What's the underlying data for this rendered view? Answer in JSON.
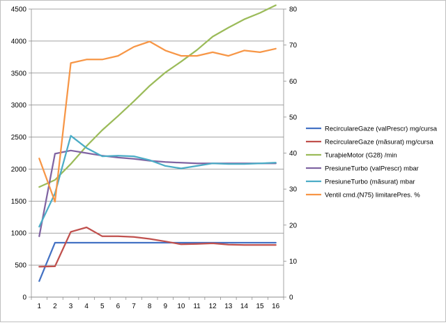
{
  "chart_data": {
    "type": "line",
    "title": "",
    "xlabel": "",
    "ylabel": "",
    "categories": [
      "1",
      "2",
      "3",
      "4",
      "5",
      "6",
      "7",
      "8",
      "9",
      "10",
      "11",
      "12",
      "13",
      "14",
      "15",
      "16"
    ],
    "y_left": {
      "min": 0,
      "max": 4500,
      "ticks": [
        "0",
        "500",
        "1000",
        "1500",
        "2000",
        "2500",
        "3000",
        "3500",
        "4000",
        "4500"
      ]
    },
    "y_right": {
      "min": 0,
      "max": 80,
      "ticks": [
        "0",
        "10",
        "20",
        "30",
        "40",
        "50",
        "60",
        "70",
        "80"
      ]
    },
    "grid": true,
    "legend_position": "right",
    "series": [
      {
        "name": "RecirculareGaze (valPrescr)  mg/cursa",
        "color": "#4472C4",
        "axis": "left",
        "values": [
          250,
          850,
          850,
          850,
          850,
          850,
          850,
          850,
          850,
          850,
          850,
          850,
          850,
          850,
          850,
          850
        ]
      },
      {
        "name": "RecirculareGaze (măsurat)  mg/cursa",
        "color": "#C0504D",
        "axis": "left",
        "values": [
          475,
          480,
          1020,
          1090,
          950,
          950,
          940,
          910,
          870,
          825,
          830,
          840,
          820,
          815,
          815,
          815
        ]
      },
      {
        "name": "TuraþieMotor (G28)  /min",
        "color": "#9BBB59",
        "axis": "left",
        "values": [
          1720,
          1830,
          2080,
          2360,
          2610,
          2830,
          3060,
          3300,
          3510,
          3680,
          3860,
          4070,
          4210,
          4340,
          4440,
          4560
        ]
      },
      {
        "name": "PresiuneTurbo (valPrescr)  mbar",
        "color": "#8064A2",
        "axis": "left",
        "values": [
          950,
          2240,
          2290,
          2250,
          2210,
          2180,
          2160,
          2130,
          2110,
          2100,
          2090,
          2090,
          2090,
          2090,
          2090,
          2090
        ]
      },
      {
        "name": "PresiuneTurbo (măsurat)  mbar",
        "color": "#4BACC6",
        "axis": "left",
        "values": [
          1100,
          1620,
          2520,
          2330,
          2200,
          2210,
          2200,
          2140,
          2050,
          2010,
          2050,
          2090,
          2080,
          2080,
          2090,
          2100
        ]
      },
      {
        "name": "Ventil cmd.(N75) limitarePres.  %",
        "color": "#F79646",
        "axis": "right",
        "values": [
          38.5,
          26.5,
          65,
          66,
          66,
          67,
          69.5,
          71,
          68.5,
          67,
          67,
          68,
          67,
          68.5,
          68,
          69
        ]
      }
    ]
  }
}
